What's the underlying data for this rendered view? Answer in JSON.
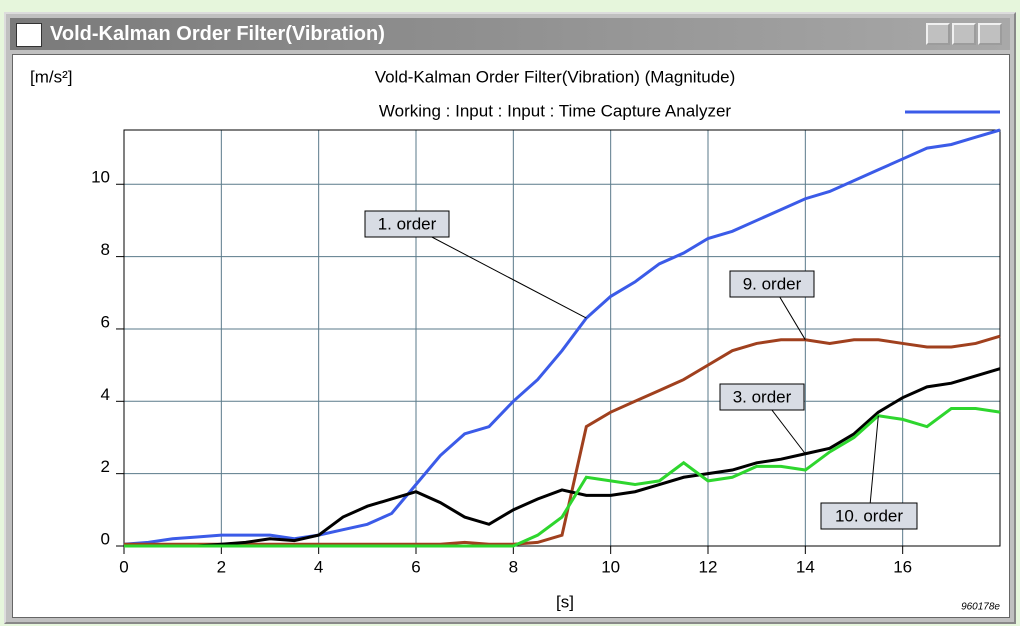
{
  "window": {
    "title": "Vold-Kalman Order Filter(Vibration)"
  },
  "chart_data": {
    "type": "line",
    "title": "Vold-Kalman Order Filter(Vibration) (Magnitude)",
    "subtitle": "Working : Input : Input : Time Capture Analyzer",
    "y_label": "[m/s²]",
    "x_label": "[s]",
    "footnote": "960178e",
    "x": [
      0,
      0.5,
      1,
      1.5,
      2,
      2.5,
      3,
      3.5,
      4,
      4.5,
      5,
      5.5,
      6,
      6.5,
      7,
      7.5,
      8,
      8.5,
      9,
      9.5,
      10,
      10.5,
      11,
      11.5,
      12,
      12.5,
      13,
      13.5,
      14,
      14.5,
      15,
      15.5,
      16,
      16.5,
      17,
      17.5,
      18
    ],
    "series": [
      {
        "name": "1. order",
        "color": "#3b5be8",
        "values": [
          0.05,
          0.1,
          0.2,
          0.25,
          0.3,
          0.3,
          0.3,
          0.2,
          0.3,
          0.45,
          0.6,
          0.9,
          1.7,
          2.5,
          3.1,
          3.3,
          4.0,
          4.6,
          5.4,
          6.3,
          6.9,
          7.3,
          7.8,
          8.1,
          8.5,
          8.7,
          9.0,
          9.3,
          9.6,
          9.8,
          10.1,
          10.4,
          10.7,
          11.0,
          11.1,
          11.3,
          11.5
        ]
      },
      {
        "name": "9. order",
        "color": "#a0401e",
        "values": [
          0.05,
          0.05,
          0.05,
          0.05,
          0.05,
          0.05,
          0.05,
          0.05,
          0.05,
          0.05,
          0.05,
          0.05,
          0.05,
          0.05,
          0.1,
          0.05,
          0.05,
          0.1,
          0.3,
          3.3,
          3.7,
          4.0,
          4.3,
          4.6,
          5.0,
          5.4,
          5.6,
          5.7,
          5.7,
          5.6,
          5.7,
          5.7,
          5.6,
          5.5,
          5.5,
          5.6,
          5.8
        ]
      },
      {
        "name": "3. order",
        "color": "#000000",
        "values": [
          0,
          0,
          0,
          0,
          0.05,
          0.1,
          0.2,
          0.15,
          0.3,
          0.8,
          1.1,
          1.3,
          1.5,
          1.2,
          0.8,
          0.6,
          1.0,
          1.3,
          1.55,
          1.4,
          1.4,
          1.5,
          1.7,
          1.9,
          2.0,
          2.1,
          2.3,
          2.4,
          2.55,
          2.7,
          3.1,
          3.7,
          4.1,
          4.4,
          4.5,
          4.7,
          4.9
        ]
      },
      {
        "name": "10. order",
        "color": "#2ed62e",
        "values": [
          0,
          0,
          0,
          0,
          0,
          0,
          0,
          0,
          0,
          0,
          0,
          0,
          0,
          0,
          0,
          0,
          0,
          0.3,
          0.8,
          1.9,
          1.8,
          1.7,
          1.8,
          2.3,
          1.8,
          1.9,
          2.2,
          2.2,
          2.1,
          2.6,
          3.0,
          3.6,
          3.5,
          3.3,
          3.8,
          3.8,
          3.7
        ]
      }
    ],
    "xlim": [
      0,
      18
    ],
    "ylim": [
      0,
      11.5
    ],
    "xticks": [
      0,
      2,
      4,
      6,
      8,
      10,
      12,
      14,
      16
    ],
    "yticks": [
      0,
      2,
      4,
      6,
      8,
      10
    ],
    "grid": true
  }
}
